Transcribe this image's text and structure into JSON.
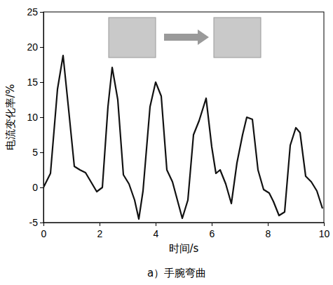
{
  "chart_data": {
    "type": "line",
    "x_label": "时间/s",
    "y_label": "电流变化率/%",
    "caption": "a）手腕弯曲",
    "x": [
      0,
      0.25,
      0.5,
      0.7,
      0.9,
      1.1,
      1.3,
      1.5,
      1.9,
      2.1,
      2.3,
      2.45,
      2.65,
      2.85,
      3.05,
      3.25,
      3.4,
      3.55,
      3.8,
      4.0,
      4.2,
      4.4,
      4.6,
      4.95,
      5.15,
      5.35,
      5.55,
      5.8,
      6.0,
      6.15,
      6.3,
      6.5,
      6.7,
      6.9,
      7.1,
      7.25,
      7.45,
      7.65,
      7.85,
      8.05,
      8.2,
      8.4,
      8.6,
      8.8,
      9.0,
      9.15,
      9.35,
      9.55,
      9.75,
      9.95
    ],
    "values": [
      0,
      2,
      14,
      18.8,
      11,
      3,
      2.5,
      2.1,
      -0.6,
      0,
      11.5,
      17.1,
      12.5,
      1.8,
      0.5,
      -1.8,
      -4.5,
      -0.5,
      11.5,
      15,
      13,
      2.5,
      0.8,
      -4.4,
      -1.8,
      7.5,
      9.5,
      12.7,
      5.8,
      2,
      2.5,
      0.5,
      -2.3,
      3.5,
      7.5,
      10,
      9.7,
      2.5,
      -0.3,
      -0.8,
      -2,
      -4,
      -3.5,
      6,
      8.5,
      7.8,
      1.6,
      0.8,
      -0.5,
      -3
    ],
    "color": "#111111",
    "xlim": [
      0,
      10
    ],
    "xticks": [
      0,
      2,
      4,
      6,
      8,
      10
    ],
    "ylim": [
      -5,
      25
    ],
    "yticks": [
      -5,
      0,
      5,
      10,
      15,
      20,
      25
    ],
    "grid": false
  }
}
